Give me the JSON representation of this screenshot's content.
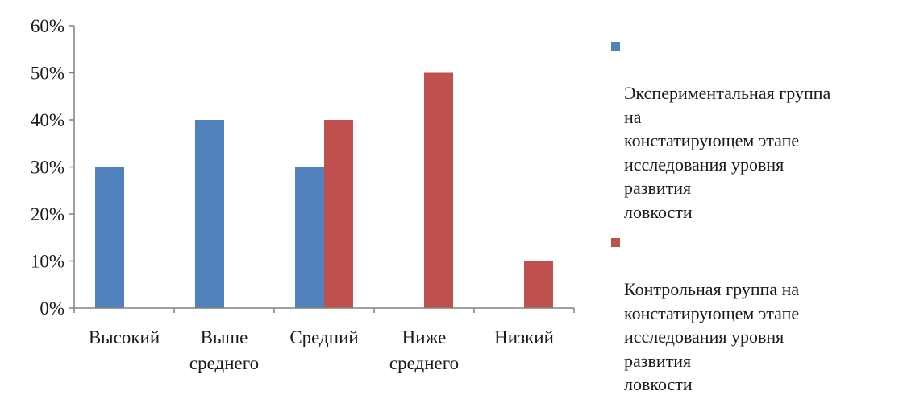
{
  "chart_data": {
    "type": "bar",
    "categories": [
      "Высокий",
      "Выше\nсреднего",
      "Средний",
      "Ниже\nсреднего",
      "Низкий"
    ],
    "series": [
      {
        "name": "Экспериментальная группа\nна\nконстатирующем этапе\nисследования уровня\nразвития\nловкости",
        "color": "#4f81bd",
        "values": [
          0.3,
          0.4,
          0.3,
          0,
          0
        ]
      },
      {
        "name": "Контрольная группа на\nконстатирующем этапе\nисследования уровня\nразвития\nловкости",
        "color": "#c0504d",
        "values": [
          0,
          0,
          0.4,
          0.5,
          0.1
        ]
      }
    ],
    "yticks": [
      "0%",
      "10%",
      "20%",
      "30%",
      "40%",
      "50%",
      "60%"
    ],
    "ylim": [
      0,
      0.6
    ],
    "grid": false,
    "legend_position": "right"
  }
}
